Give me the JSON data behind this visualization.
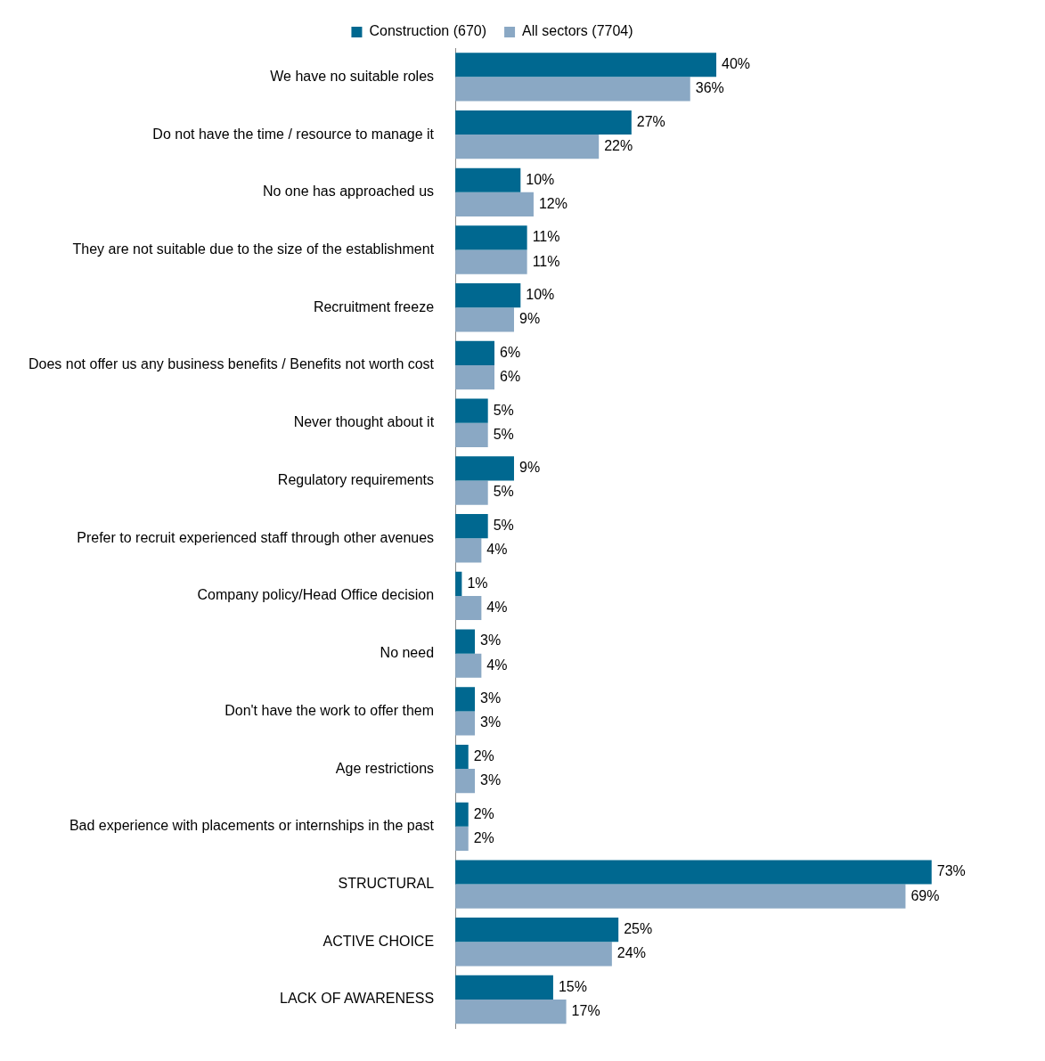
{
  "chart_data": {
    "type": "bar",
    "orientation": "horizontal",
    "legend": "top",
    "grid": false,
    "tick_labels": "y",
    "categories": [
      "We have no suitable roles",
      "Do not have the time / resource to manage it",
      "No one has approached us",
      "They are not suitable due to the size of the establishment",
      "Recruitment freeze",
      "Does not offer us any business benefits / Benefits not worth cost",
      "Never thought about it",
      "Regulatory requirements",
      "Prefer to recruit experienced staff through other avenues",
      "Company policy/Head Office decision",
      "No need",
      "Don't have the work to offer them",
      "Age restrictions",
      "Bad experience with placements or internships in the past",
      "STRUCTURAL",
      "ACTIVE CHOICE",
      "LACK OF AWARENESS"
    ],
    "series": [
      {
        "name": "Construction (670)",
        "color": "#006890",
        "values": [
          40,
          27,
          10,
          11,
          10,
          6,
          5,
          9,
          5,
          1,
          3,
          3,
          2,
          2,
          73,
          25,
          15
        ],
        "value_labels": [
          "40%",
          "27%",
          "10%",
          "11%",
          "10%",
          "6%",
          "5%",
          "9%",
          "5%",
          "1%",
          "3%",
          "3%",
          "2%",
          "2%",
          "73%",
          "25%",
          "15%"
        ]
      },
      {
        "name": "All sectors (7704)",
        "color": "#8aa8c4",
        "values": [
          36,
          22,
          12,
          11,
          9,
          6,
          5,
          5,
          4,
          4,
          4,
          3,
          3,
          2,
          69,
          24,
          17
        ],
        "value_labels": [
          "36%",
          "22%",
          "12%",
          "11%",
          "9%",
          "6%",
          "5%",
          "5%",
          "4%",
          "4%",
          "4%",
          "3%",
          "3%",
          "2%",
          "69%",
          "24%",
          "17%"
        ]
      }
    ]
  }
}
